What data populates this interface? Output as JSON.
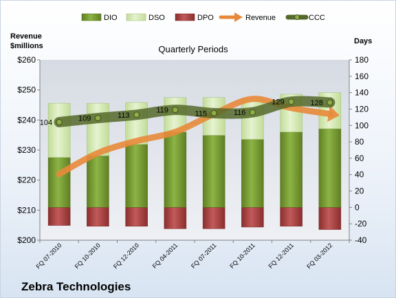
{
  "chart_data": {
    "type": "bar",
    "title": "Quarterly Periods",
    "company": "Zebra Technologies",
    "left_axis": {
      "label_line1": "Revenue",
      "label_line2": "$millions",
      "min": 200,
      "max": 260,
      "step": 10,
      "tick_prefix": "$"
    },
    "right_axis": {
      "label": "Days",
      "min": -40,
      "max": 180,
      "step": 20
    },
    "categories": [
      "FQ 07-2010",
      "FQ 10-2010",
      "FQ 12-2010",
      "FQ 04-2011",
      "FQ 07-2011",
      "FQ 10-2011",
      "FQ 12-2011",
      "FQ 03-2012"
    ],
    "series": [
      {
        "name": "DIO",
        "axis": "right",
        "kind": "stacked-bar",
        "values": [
          61,
          63,
          77,
          92,
          88,
          83,
          92,
          96
        ]
      },
      {
        "name": "DSO",
        "axis": "right",
        "kind": "stacked-bar",
        "values": [
          66,
          64,
          51,
          42,
          46,
          50,
          46,
          44
        ]
      },
      {
        "name": "DPO",
        "axis": "right",
        "kind": "negative-bar",
        "values": [
          -22,
          -23,
          -23,
          -26,
          -26,
          -24,
          -23,
          -27
        ]
      },
      {
        "name": "Revenue",
        "axis": "left",
        "kind": "line",
        "values": [
          222,
          229,
          233,
          236,
          242,
          247,
          244,
          242
        ]
      },
      {
        "name": "CCC",
        "axis": "right",
        "kind": "line",
        "values": [
          104,
          109,
          113,
          119,
          115,
          116,
          129,
          128
        ]
      }
    ],
    "ccc_labels": [
      "104",
      "109",
      "113",
      "119",
      "115",
      "116",
      "129",
      "128"
    ],
    "legend": [
      "DIO",
      "DSO",
      "DPO",
      "Revenue",
      "CCC"
    ],
    "legend_position": "top",
    "grid": false,
    "colors": {
      "DIO": "#7a9c32",
      "DSO": "#d3e8b0",
      "DPO": "#a23c3c",
      "Revenue": "#e8893a",
      "CCC": "#55692a"
    }
  }
}
